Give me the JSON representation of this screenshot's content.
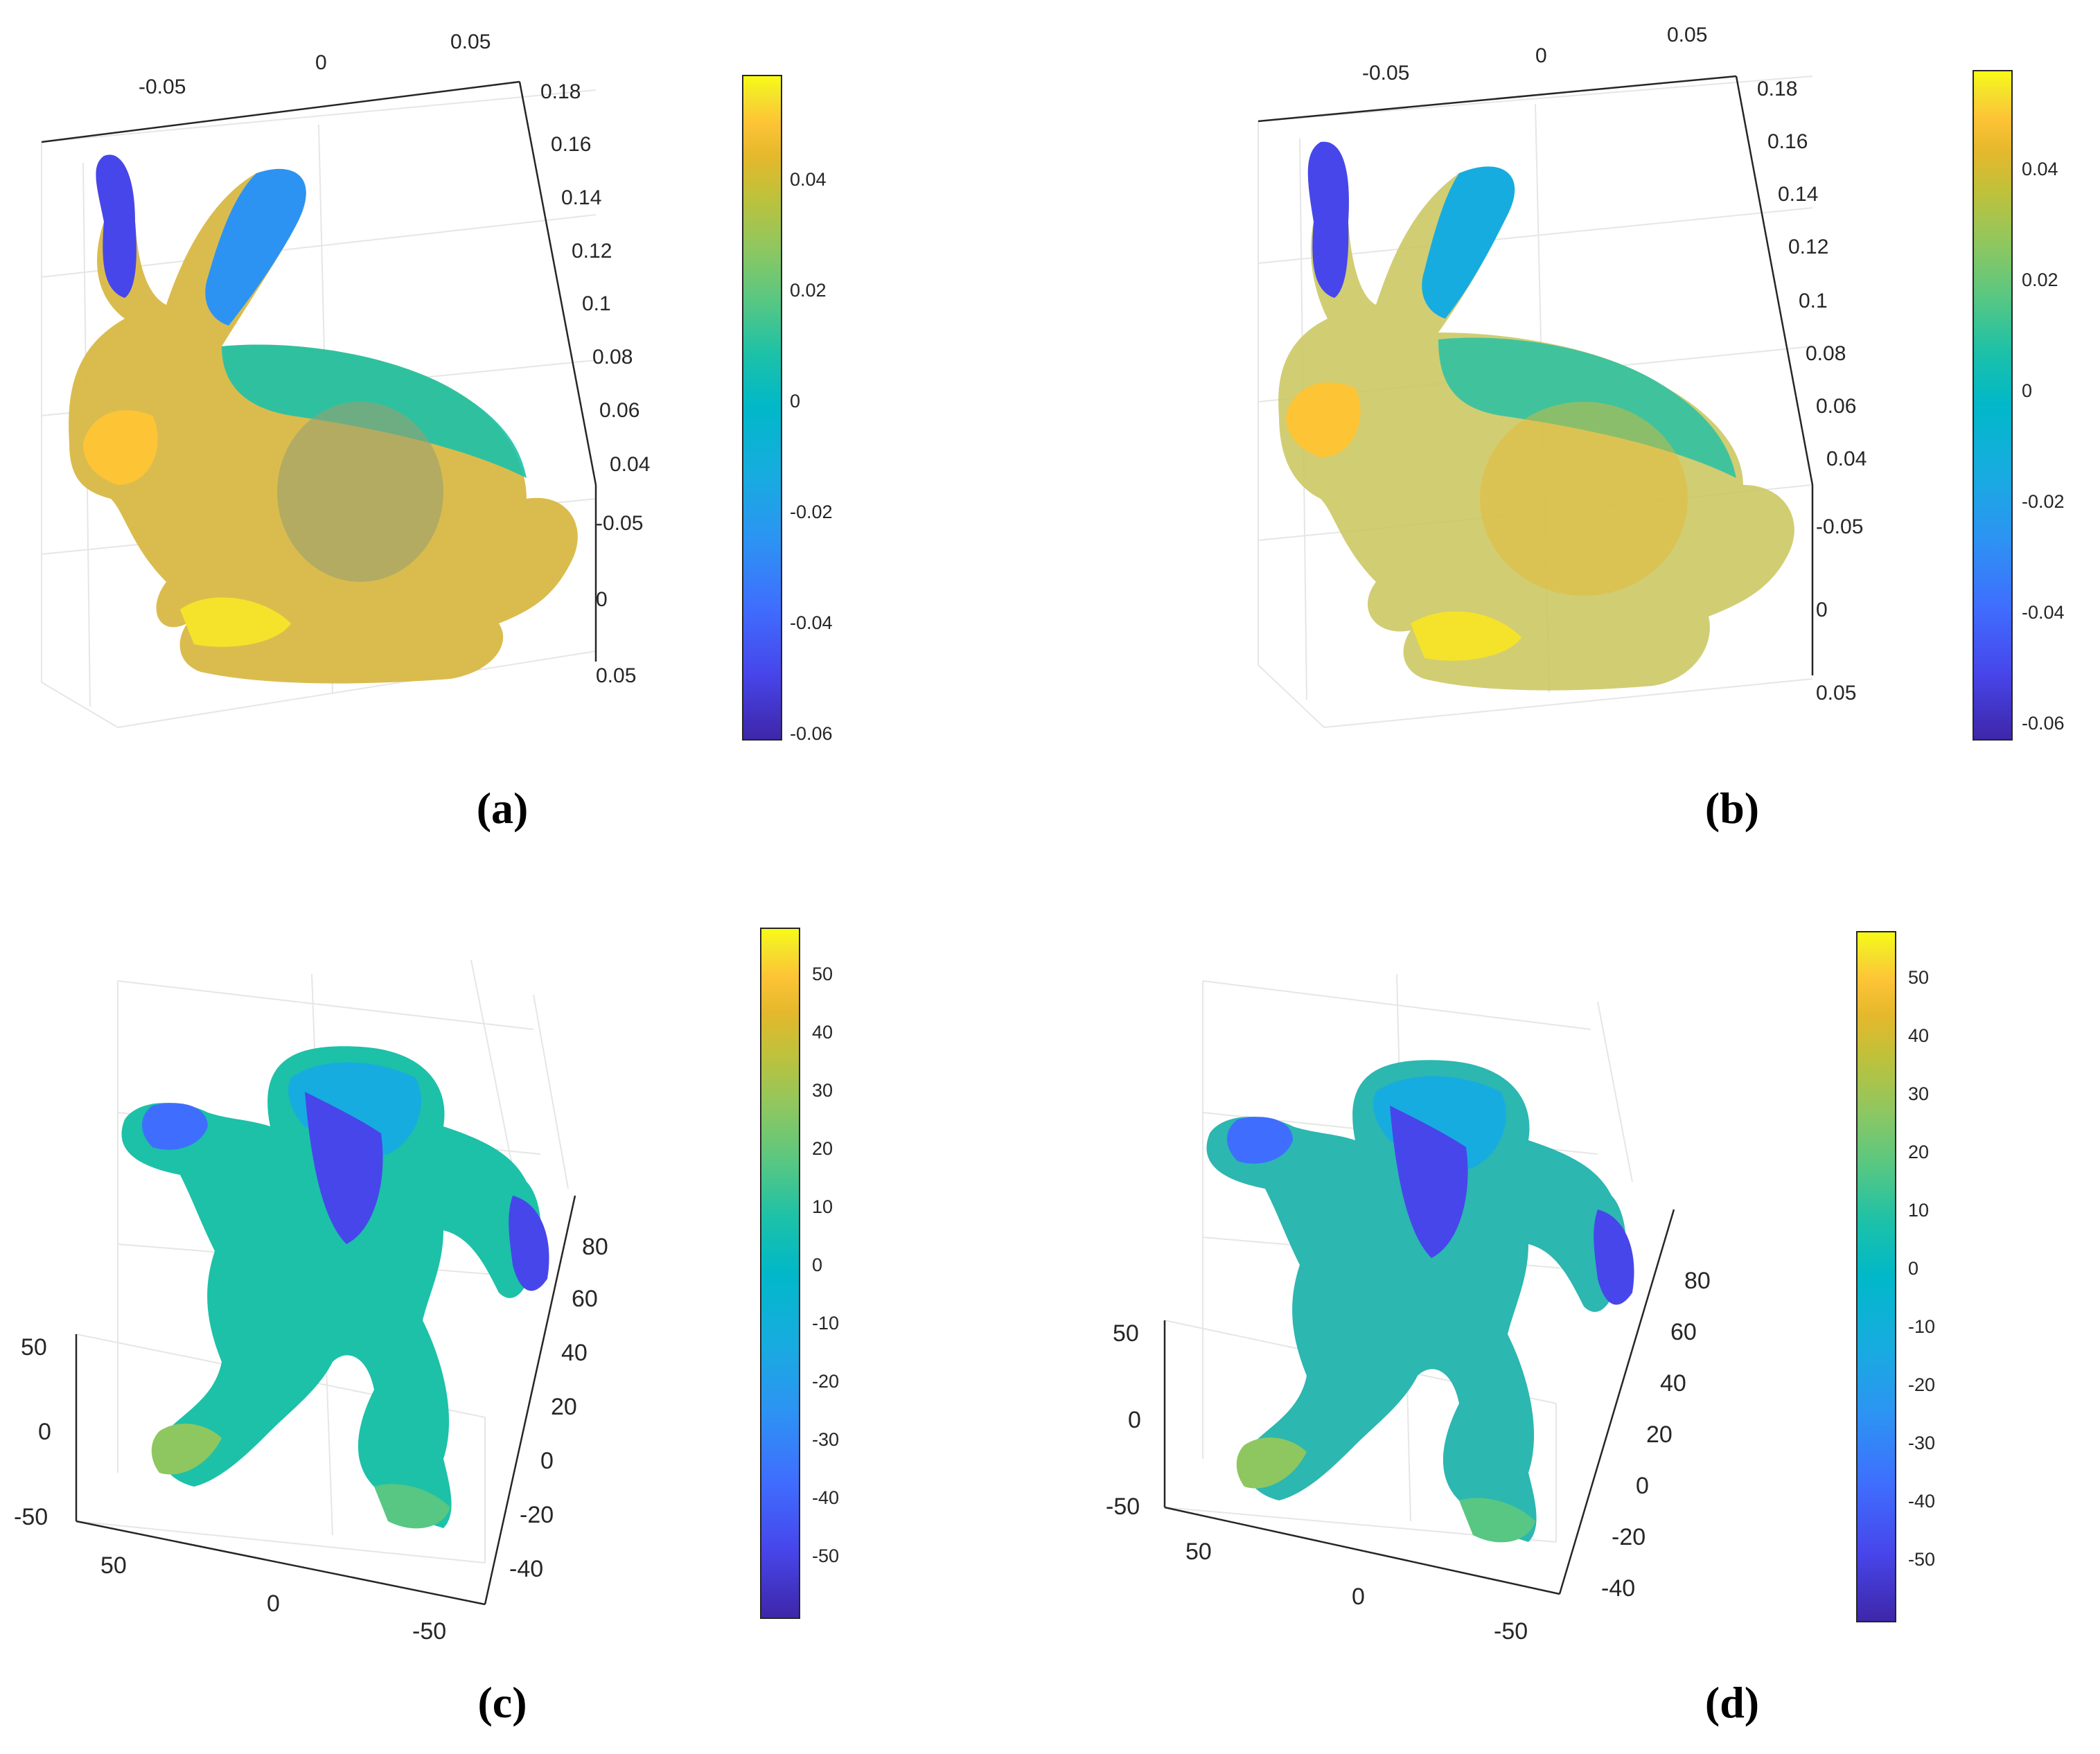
{
  "colors": {
    "parula": [
      "#3e26a8",
      "#4746eb",
      "#3f6efe",
      "#2d93f3",
      "#17acdf",
      "#01b8c9",
      "#1cc1a8",
      "#57c783",
      "#8ec760",
      "#c0c13a",
      "#e6b82c",
      "#fdc436",
      "#f5e32b",
      "#f9fb15"
    ],
    "axis": "#262626",
    "grid": "#e6e6e6"
  },
  "panels": [
    {
      "label": "(a)",
      "icon": "bunny-point-cloud-regular",
      "axes": {
        "x_ticks": [
          "-0.05",
          "0",
          "0.05"
        ],
        "z_ticks": [
          "0.18",
          "0.16",
          "0.14",
          "0.12",
          "0.1",
          "0.08",
          "0.06",
          "0.04"
        ],
        "y_ticks": [
          "-0.05",
          "0",
          "0.05"
        ]
      },
      "colorbar": {
        "ticks": [
          "0.04",
          "0.02",
          "0",
          "-0.02",
          "-0.04",
          "-0.06"
        ],
        "range": [
          -0.062,
          0.058
        ]
      }
    },
    {
      "label": "(b)",
      "icon": "bunny-point-cloud-noisy",
      "axes": {
        "x_ticks": [
          "-0.05",
          "0",
          "0.05"
        ],
        "z_ticks": [
          "0.18",
          "0.16",
          "0.14",
          "0.12",
          "0.1",
          "0.08",
          "0.06",
          "0.04"
        ],
        "y_ticks": [
          "-0.05",
          "0",
          "0.05"
        ]
      },
      "colorbar": {
        "ticks": [
          "0.04",
          "0.02",
          "0",
          "-0.02",
          "-0.04",
          "-0.06"
        ],
        "range": [
          -0.062,
          0.058
        ]
      }
    },
    {
      "label": "(c)",
      "icon": "armadillo-point-cloud-regular",
      "axes": {
        "z_ticks": [
          "50",
          "0",
          "-50"
        ],
        "x_ticks": [
          "50",
          "0",
          "-50"
        ],
        "y_ticks": [
          "80",
          "60",
          "40",
          "20",
          "0",
          "-20",
          "-40"
        ]
      },
      "colorbar": {
        "ticks": [
          "50",
          "40",
          "30",
          "20",
          "10",
          "0",
          "-10",
          "-20",
          "-30",
          "-40",
          "-50"
        ],
        "range": [
          -58,
          58
        ]
      }
    },
    {
      "label": "(d)",
      "icon": "armadillo-point-cloud-noisy",
      "axes": {
        "z_ticks": [
          "50",
          "0",
          "-50"
        ],
        "x_ticks": [
          "50",
          "0",
          "-50"
        ],
        "y_ticks": [
          "80",
          "60",
          "40",
          "20",
          "0",
          "-20",
          "-40"
        ]
      },
      "colorbar": {
        "ticks": [
          "50",
          "40",
          "30",
          "20",
          "10",
          "0",
          "-10",
          "-20",
          "-30",
          "-40",
          "-50"
        ],
        "range": [
          -58,
          58
        ]
      }
    }
  ]
}
